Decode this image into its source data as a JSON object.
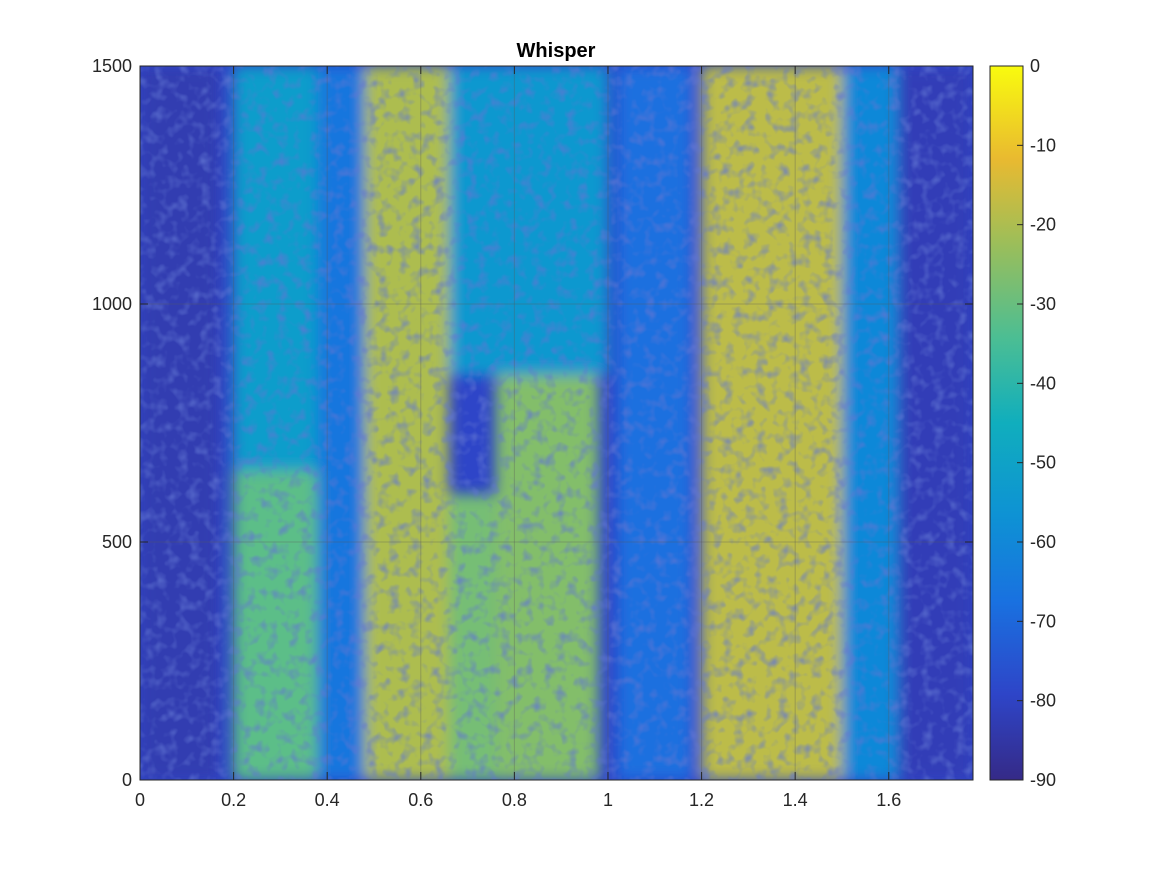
{
  "chart_data": {
    "type": "heatmap",
    "title": "Whisper",
    "xlabel": "",
    "ylabel": "",
    "xlim": [
      0,
      1.78
    ],
    "ylim": [
      0,
      1500
    ],
    "x_ticks": [
      0,
      0.2,
      0.4,
      0.6,
      0.8,
      1,
      1.2,
      1.4,
      1.6
    ],
    "x_tick_labels": [
      "0",
      "0.2",
      "0.4",
      "0.6",
      "0.8",
      "1",
      "1.2",
      "1.4",
      "1.6"
    ],
    "y_ticks": [
      0,
      500,
      1000,
      1500
    ],
    "y_tick_labels": [
      "0",
      "500",
      "1000",
      "1500"
    ],
    "grid": true,
    "colormap": "parula",
    "colorbar": {
      "limits": [
        -90,
        0
      ],
      "ticks": [
        0,
        -10,
        -20,
        -30,
        -40,
        -50,
        -60,
        -70,
        -80,
        -90
      ],
      "tick_labels": [
        "0",
        "-10",
        "-20",
        "-30",
        "-40",
        "-50",
        "-60",
        "-70",
        "-80",
        "-90"
      ]
    },
    "regions": [
      {
        "t": [
          0.0,
          0.17
        ],
        "f": [
          0,
          1500
        ],
        "level_db": -83
      },
      {
        "t": [
          0.2,
          0.38
        ],
        "f": [
          0,
          650
        ],
        "level_db": -32
      },
      {
        "t": [
          0.2,
          0.38
        ],
        "f": [
          650,
          1500
        ],
        "level_db": -52
      },
      {
        "t": [
          0.38,
          0.48
        ],
        "f": [
          0,
          1500
        ],
        "level_db": -66
      },
      {
        "t": [
          0.48,
          0.66
        ],
        "f": [
          0,
          1500
        ],
        "level_db": -20
      },
      {
        "t": [
          0.66,
          0.76
        ],
        "f": [
          0,
          600
        ],
        "level_db": -28
      },
      {
        "t": [
          0.76,
          0.98
        ],
        "f": [
          0,
          850
        ],
        "level_db": -26
      },
      {
        "t": [
          0.66,
          1.0
        ],
        "f": [
          850,
          1500
        ],
        "level_db": -54
      },
      {
        "t": [
          1.02,
          1.18
        ],
        "f": [
          0,
          1500
        ],
        "level_db": -68
      },
      {
        "t": [
          1.2,
          1.5
        ],
        "f": [
          0,
          1500
        ],
        "level_db": -18
      },
      {
        "t": [
          1.5,
          1.62
        ],
        "f": [
          0,
          1500
        ],
        "level_db": -60
      },
      {
        "t": [
          1.62,
          1.78
        ],
        "f": [
          0,
          1500
        ],
        "level_db": -82
      }
    ]
  }
}
